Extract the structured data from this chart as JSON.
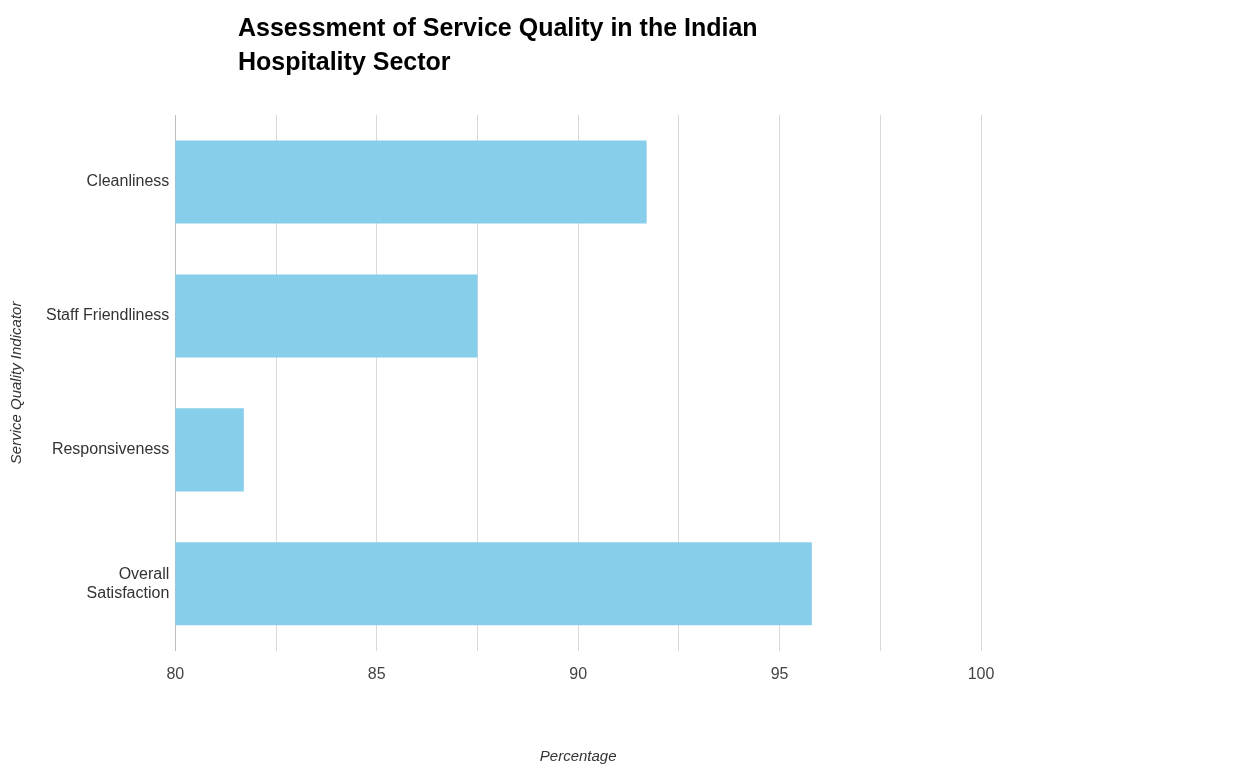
{
  "chart_data": {
    "type": "bar",
    "orientation": "horizontal",
    "title": "Assessment of Service Quality in the Indian Hospitality Sector",
    "xlabel": "Percentage",
    "ylabel": "Service Quality Indicator",
    "categories": [
      "Cleanliness",
      "Staff Friendliness",
      "Responsiveness",
      "Overall Satisfaction"
    ],
    "values": [
      91.7,
      87.5,
      81.7,
      95.8
    ],
    "color": "#87ceeb",
    "xlim": [
      80,
      100
    ],
    "xticks": [
      80,
      {
        "value": 82.5,
        "label": null
      },
      85,
      {
        "value": 87.5,
        "label": null
      },
      90,
      {
        "value": 92.5,
        "label": null
      },
      95,
      {
        "value": 97.5,
        "label": null
      },
      100
    ],
    "grid": "x",
    "legend": false
  }
}
